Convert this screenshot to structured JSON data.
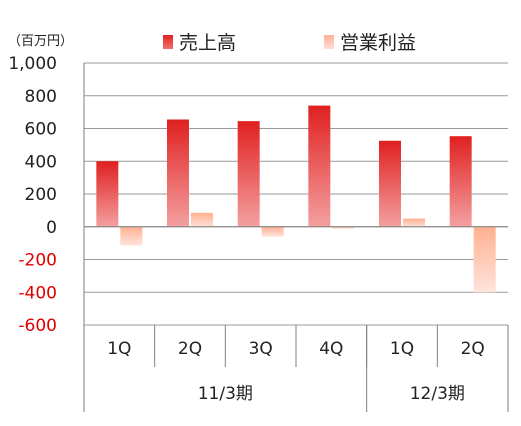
{
  "unit_label": "（百万円）",
  "colors": {
    "sales_top": "#e02020",
    "sales_bottom": "#f4a0a0",
    "profit_top": "#ffb090",
    "profit_bottom": "#ffe0d8",
    "negative_tick": "#e00000",
    "axis": "#7f7f7f"
  },
  "chart_data": {
    "type": "bar",
    "categories": [
      "1Q",
      "2Q",
      "3Q",
      "4Q",
      "1Q",
      "2Q"
    ],
    "groups": [
      {
        "label": "11/3期",
        "span": 4
      },
      {
        "label": "12/3期",
        "span": 2
      }
    ],
    "series": [
      {
        "name": "売上高",
        "values": [
          400,
          655,
          645,
          740,
          525,
          553
        ]
      },
      {
        "name": "営業利益",
        "values": [
          -115,
          85,
          -60,
          -12,
          50,
          -400
        ]
      }
    ],
    "ylim": [
      -600,
      1000
    ],
    "yticks": [
      "1,000",
      "800",
      "600",
      "400",
      "200",
      "0",
      "-200",
      "-400",
      "-600"
    ],
    "ytick_values": [
      1000,
      800,
      600,
      400,
      200,
      0,
      -200,
      -400,
      -600
    ],
    "grid": true,
    "legend_position": "top"
  }
}
